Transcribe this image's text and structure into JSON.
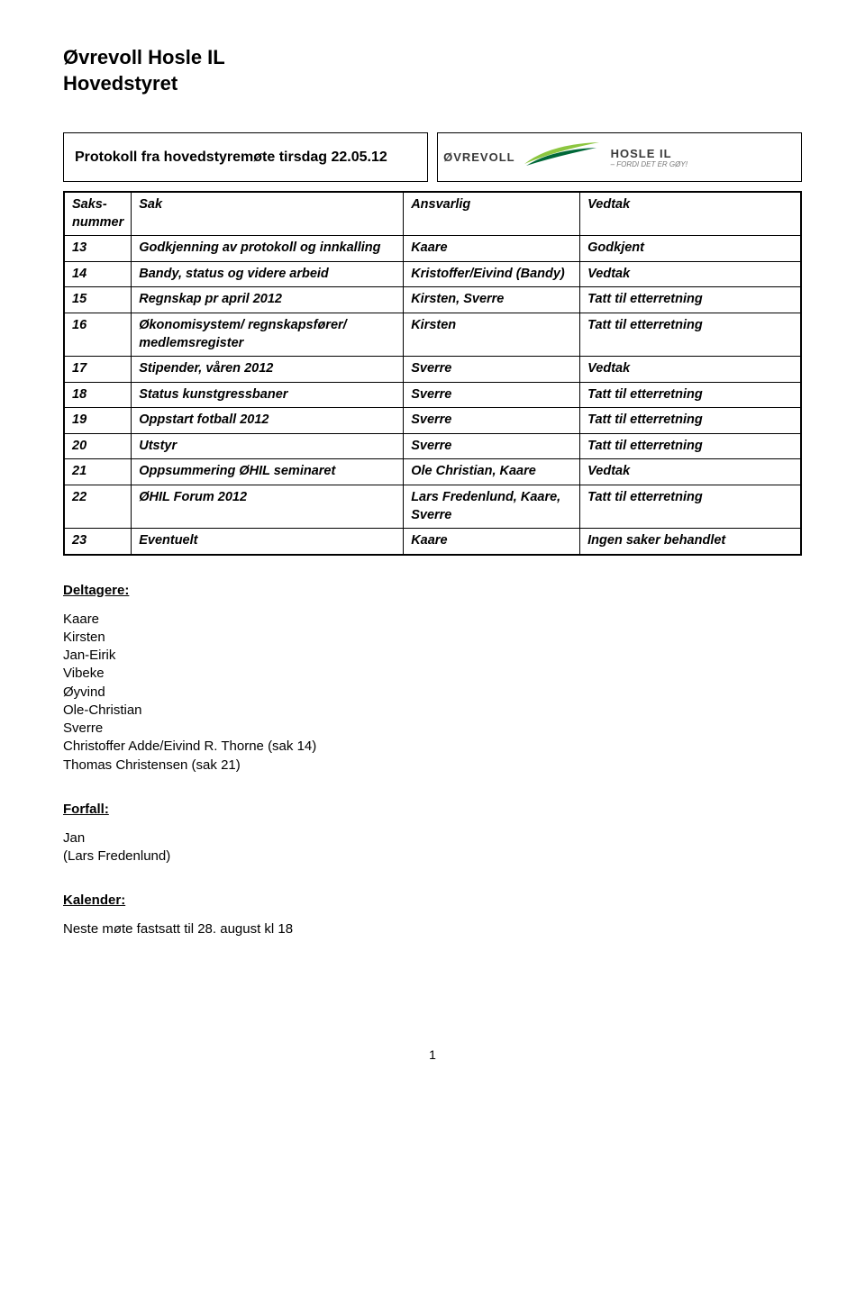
{
  "header": {
    "line1": "Øvrevoll Hosle IL",
    "line2": "Hovedstyret"
  },
  "protocol": {
    "title": "Protokoll fra hovedstyremøte tirsdag 22.05.12"
  },
  "logo": {
    "left_text": "ØVREVOLL",
    "right_text": "HOSLE IL",
    "tagline": "– FORDI DET ER GØY!",
    "swoosh_light": "#8cc63f",
    "swoosh_dark": "#006838"
  },
  "table": {
    "headers": [
      "Saks-\nnummer",
      "Sak",
      "Ansvarlig",
      "Vedtak"
    ],
    "rows": [
      [
        "13",
        "Godkjenning av protokoll og innkalling",
        "Kaare",
        "Godkjent"
      ],
      [
        "14",
        "Bandy, status og videre arbeid",
        "Kristoffer/Eivind (Bandy)",
        "Vedtak"
      ],
      [
        "15",
        "Regnskap pr april 2012",
        "Kirsten, Sverre",
        "Tatt til etterretning"
      ],
      [
        "16",
        "Økonomisystem/ regnskapsfører/ medlemsregister",
        "Kirsten",
        "Tatt til etterretning"
      ],
      [
        "17",
        "Stipender, våren 2012",
        "Sverre",
        "Vedtak"
      ],
      [
        "18",
        "Status kunstgressbaner",
        "Sverre",
        "Tatt til etterretning"
      ],
      [
        "19",
        "Oppstart fotball 2012",
        "Sverre",
        "Tatt til etterretning"
      ],
      [
        "20",
        "Utstyr",
        "Sverre",
        "Tatt til etterretning"
      ],
      [
        "21",
        "Oppsummering ØHIL seminaret",
        "Ole Christian, Kaare",
        "Vedtak"
      ],
      [
        "22",
        "ØHIL Forum 2012",
        "Lars Fredenlund, Kaare, Sverre",
        "Tatt til etterretning"
      ],
      [
        "23",
        "Eventuelt",
        "Kaare",
        "Ingen saker behandlet"
      ]
    ]
  },
  "deltagere": {
    "heading": "Deltagere:",
    "items": [
      "Kaare",
      "Kirsten",
      "Jan-Eirik",
      "Vibeke",
      "Øyvind",
      "Ole-Christian",
      "Sverre",
      "Christoffer Adde/Eivind R. Thorne (sak 14)",
      "Thomas Christensen (sak 21)"
    ]
  },
  "forfall": {
    "heading": "Forfall:",
    "items": [
      "Jan",
      "(Lars Fredenlund)"
    ]
  },
  "kalender": {
    "heading": "Kalender:",
    "text": "Neste møte fastsatt til 28. august kl 18"
  },
  "page_number": "1"
}
